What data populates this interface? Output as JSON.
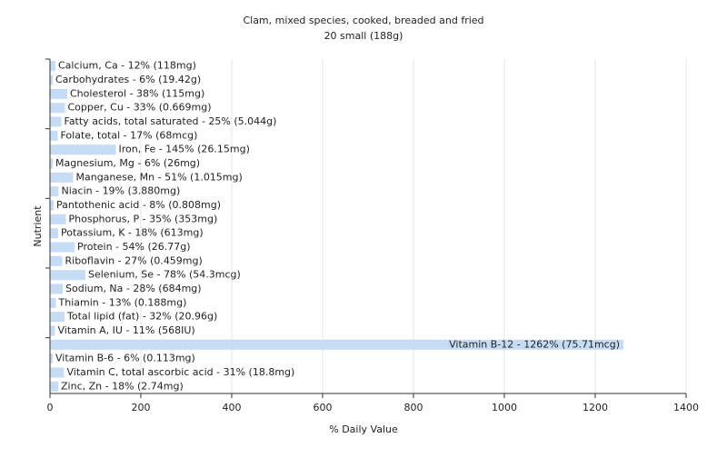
{
  "chart_data": {
    "type": "hbar",
    "title": "Clam, mixed species, cooked, breaded and fried",
    "subtitle": "20 small (188g)",
    "x_label": "% Daily Value",
    "y_label": "Nutrient",
    "color": "#c6dcf5",
    "values": [
      12,
      6,
      38,
      33,
      25,
      17,
      145,
      6,
      51,
      19,
      8,
      35,
      18,
      54,
      27,
      78,
      28,
      13,
      32,
      11,
      1262,
      6,
      31,
      18
    ],
    "value_labels": [
      "Calcium, Ca - 12% (118mg)",
      "Carbohydrates - 6% (19.42g)",
      "Cholesterol - 38% (115mg)",
      "Copper, Cu - 33% (0.669mg)",
      "Fatty acids, total saturated - 25% (5.044g)",
      "Folate, total - 17% (68mcg)",
      "Iron, Fe - 145% (26.15mg)",
      "Magnesium, Mg - 6% (26mg)",
      "Manganese, Mn - 51% (1.015mg)",
      "Niacin - 19% (3.880mg)",
      "Pantothenic acid - 8% (0.808mg)",
      "Phosphorus, P - 35% (353mg)",
      "Potassium, K - 18% (613mg)",
      "Protein - 54% (26.77g)",
      "Riboflavin - 27% (0.459mg)",
      "Selenium, Se - 78% (54.3mcg)",
      "Sodium, Na - 28% (684mg)",
      "Thiamin - 13% (0.188mg)",
      "Total lipid (fat) - 32% (20.96g)",
      "Vitamin A, IU - 11% (568IU)",
      "Vitamin B-12 - 1262% (75.71mcg)",
      "Vitamin B-6 - 6% (0.113mg)",
      "Vitamin C, total ascorbic acid - 31% (18.8mg)",
      "Zinc, Zn - 18% (2.74mg)"
    ],
    "xlim": [
      0,
      1400
    ],
    "xticks": [
      0,
      200,
      400,
      600,
      800,
      1000,
      1200,
      1400
    ],
    "grid": true
  }
}
